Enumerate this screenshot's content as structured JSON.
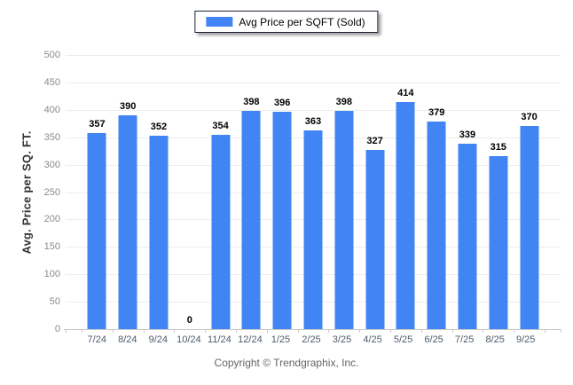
{
  "legend": {
    "label": "Avg Price per SQFT (Sold)",
    "swatch_color": "#4184F3"
  },
  "footer": "Copyright © Trendgraphix, Inc.",
  "chart_data": {
    "type": "bar",
    "title": "",
    "categories": [
      "7/24",
      "8/24",
      "9/24",
      "10/24",
      "11/24",
      "12/24",
      "1/25",
      "2/25",
      "3/25",
      "4/25",
      "5/25",
      "6/25",
      "7/25",
      "8/25",
      "9/25"
    ],
    "values": [
      357,
      390,
      352,
      0,
      354,
      398,
      396,
      363,
      398,
      327,
      414,
      379,
      339,
      315,
      370
    ],
    "series_name": "Avg Price per SQFT (Sold)",
    "xlabel": "",
    "ylabel": "Avg. Price per SQ. FT.",
    "ylim": [
      0,
      500
    ],
    "yticks": [
      0,
      50,
      100,
      150,
      200,
      250,
      300,
      350,
      400,
      450,
      500
    ],
    "bar_color": "#4184F3",
    "grid": true,
    "legend_position": "top-center",
    "value_labels": true
  }
}
